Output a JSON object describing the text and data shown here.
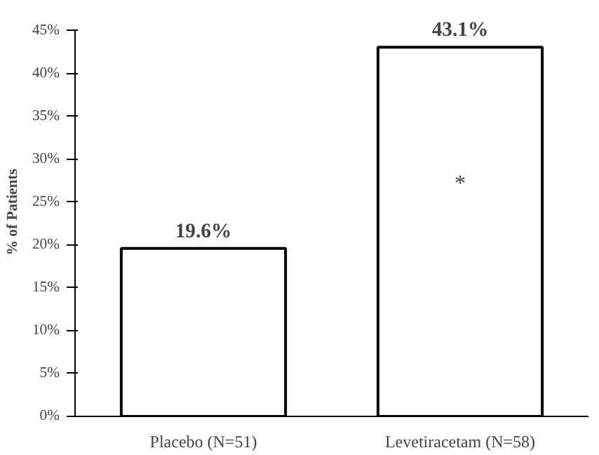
{
  "chart_data": {
    "type": "bar",
    "ylabel": "% of Patients",
    "categories": [
      "Placebo (N=51)",
      "Levetiracetam (N=58)"
    ],
    "values": [
      19.6,
      43.1
    ],
    "color": "#ffffff",
    "value_labels": [
      "19.6%",
      "43.1%"
    ],
    "ylim": [
      0,
      45
    ],
    "yticks": [
      {
        "value": 0,
        "label": "0%"
      },
      {
        "value": 5,
        "label": "5%"
      },
      {
        "value": 10,
        "label": "10%"
      },
      {
        "value": 15,
        "label": "15%"
      },
      {
        "value": 20,
        "label": "20%"
      },
      {
        "value": 25,
        "label": "25%"
      },
      {
        "value": 30,
        "label": "30%"
      },
      {
        "value": 35,
        "label": "35%"
      },
      {
        "value": 40,
        "label": "40%"
      },
      {
        "value": 45,
        "label": "45%"
      }
    ],
    "annotations": [
      "*"
    ],
    "grid": false
  }
}
